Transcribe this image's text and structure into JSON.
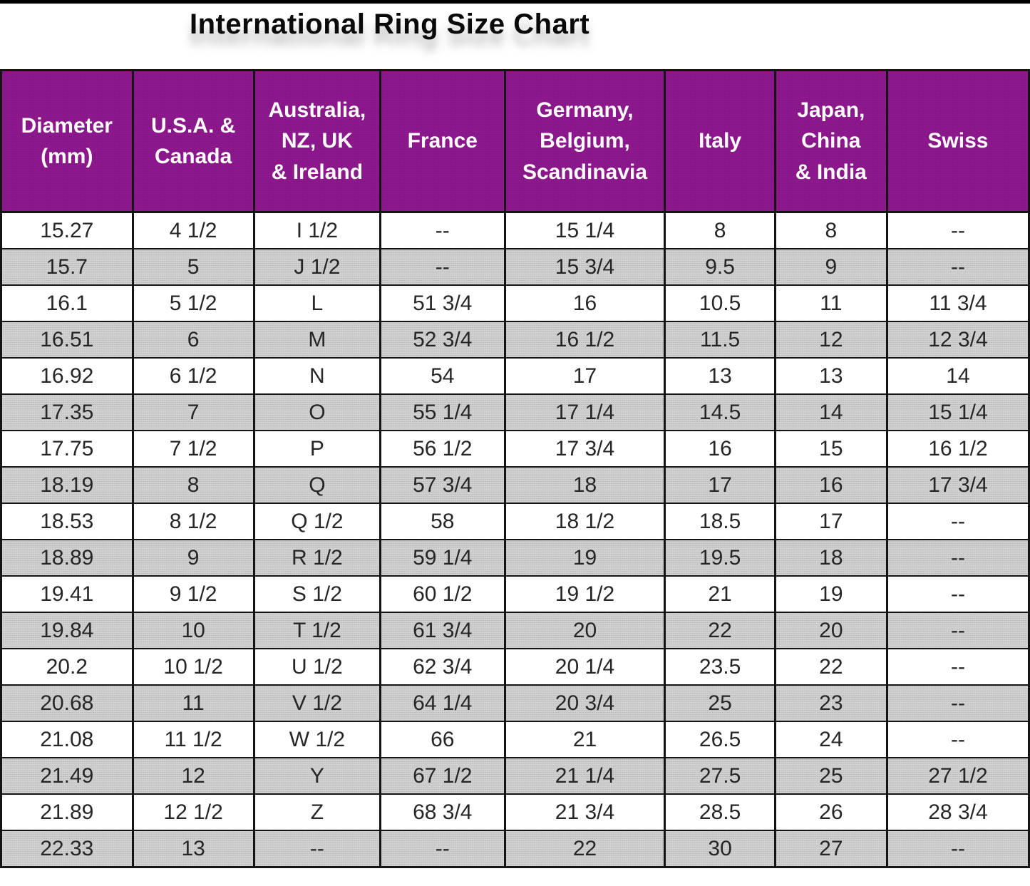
{
  "title": "International Ring Size Chart",
  "placeholder_dash": "--",
  "colors": {
    "header_bg": "#8e188e",
    "header_text": "#ffffff",
    "row_bg": "#ffffff",
    "row_alt_bg": "#d0d0d0",
    "border": "#141414",
    "title_text": "#0a0a0a",
    "cell_text": "#262626"
  },
  "chart_data": {
    "type": "table",
    "title": "International Ring Size Chart",
    "columns": [
      "Diameter (mm)",
      "U.S.A. & Canada",
      "Australia, NZ, UK & Ireland",
      "France",
      "Germany, Belgium, Scandinavia",
      "Italy",
      "Japan, China & India",
      "Swiss"
    ],
    "columns_display": [
      "Diameter\n(mm)",
      "U.S.A. &\nCanada",
      "Australia,\nNZ, UK\n& Ireland",
      "France",
      "Germany,\nBelgium,\nScandinavia",
      "Italy",
      "Japan,\nChina\n& India",
      "Swiss"
    ],
    "layout": {
      "alternating_rows": true,
      "first_row_shade": "white",
      "column_widths_pct": [
        12.8,
        11.8,
        12.3,
        12.1,
        15.6,
        10.7,
        10.9,
        13.8
      ]
    },
    "rows": [
      [
        "15.27",
        "4 1/2",
        "I 1/2",
        "--",
        "15 1/4",
        "8",
        "8",
        "--"
      ],
      [
        "15.7",
        "5",
        "J 1/2",
        "--",
        "15 3/4",
        "9.5",
        "9",
        "--"
      ],
      [
        "16.1",
        "5 1/2",
        "L",
        "51 3/4",
        "16",
        "10.5",
        "11",
        "11 3/4"
      ],
      [
        "16.51",
        "6",
        "M",
        "52 3/4",
        "16 1/2",
        "11.5",
        "12",
        "12 3/4"
      ],
      [
        "16.92",
        "6 1/2",
        "N",
        "54",
        "17",
        "13",
        "13",
        "14"
      ],
      [
        "17.35",
        "7",
        "O",
        "55 1/4",
        "17 1/4",
        "14.5",
        "14",
        "15 1/4"
      ],
      [
        "17.75",
        "7 1/2",
        "P",
        "56 1/2",
        "17 3/4",
        "16",
        "15",
        "16 1/2"
      ],
      [
        "18.19",
        "8",
        "Q",
        "57 3/4",
        "18",
        "17",
        "16",
        "17 3/4"
      ],
      [
        "18.53",
        "8 1/2",
        "Q 1/2",
        "58",
        "18 1/2",
        "18.5",
        "17",
        "--"
      ],
      [
        "18.89",
        "9",
        "R 1/2",
        "59 1/4",
        "19",
        "19.5",
        "18",
        "--"
      ],
      [
        "19.41",
        "9 1/2",
        "S 1/2",
        "60 1/2",
        "19 1/2",
        "21",
        "19",
        "--"
      ],
      [
        "19.84",
        "10",
        "T 1/2",
        "61 3/4",
        "20",
        "22",
        "20",
        "--"
      ],
      [
        "20.2",
        "10 1/2",
        "U 1/2",
        "62 3/4",
        "20 1/4",
        "23.5",
        "22",
        "--"
      ],
      [
        "20.68",
        "11",
        "V 1/2",
        "64 1/4",
        "20 3/4",
        "25",
        "23",
        "--"
      ],
      [
        "21.08",
        "11 1/2",
        "W 1/2",
        "66",
        "21",
        "26.5",
        "24",
        "--"
      ],
      [
        "21.49",
        "12",
        "Y",
        "67 1/2",
        "21 1/4",
        "27.5",
        "25",
        "27 1/2"
      ],
      [
        "21.89",
        "12 1/2",
        "Z",
        "68 3/4",
        "21 3/4",
        "28.5",
        "26",
        "28 3/4"
      ],
      [
        "22.33",
        "13",
        "--",
        "--",
        "22",
        "30",
        "27",
        "--"
      ]
    ]
  }
}
